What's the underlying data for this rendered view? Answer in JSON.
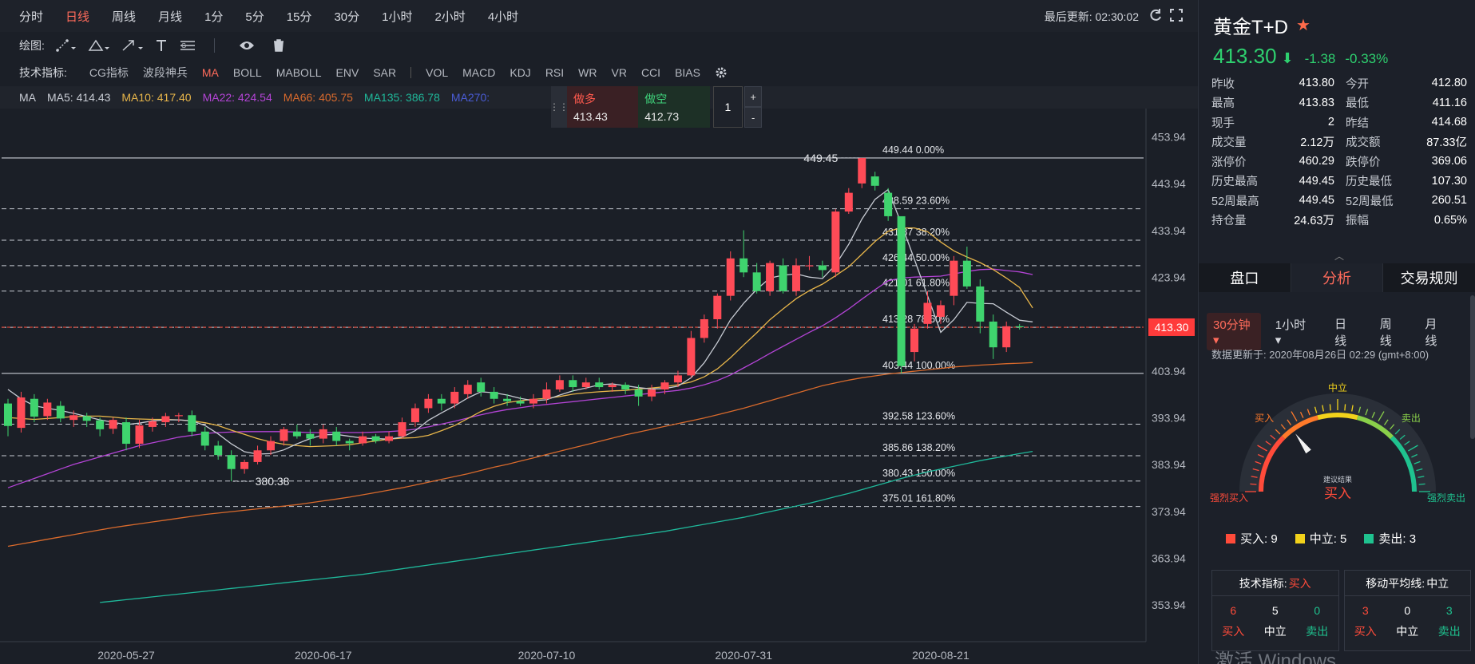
{
  "timeframes": [
    "分时",
    "日线",
    "周线",
    "月线",
    "1分",
    "5分",
    "15分",
    "30分",
    "1小时",
    "2小时",
    "4小时"
  ],
  "active_timeframe": "日线",
  "last_update": "最后更新: 02:30:02",
  "draw": {
    "label": "绘图:"
  },
  "indicators": {
    "label": "技术指标:",
    "items": [
      "CG指标",
      "波段神兵",
      "MA",
      "BOLL",
      "MABOLL",
      "ENV",
      "SAR",
      "|",
      "VOL",
      "MACD",
      "KDJ",
      "RSI",
      "WR",
      "VR",
      "CCI",
      "BIAS"
    ],
    "active": "MA"
  },
  "ma_legend": [
    {
      "text": "MA",
      "color": "#c8ccd4"
    },
    {
      "text": "MA5: 414.43",
      "color": "#c8ccd4"
    },
    {
      "text": "MA10: 417.40",
      "color": "#e8b64a"
    },
    {
      "text": "MA22: 424.54",
      "color": "#b444d6"
    },
    {
      "text": "MA66: 405.75",
      "color": "#d96a2c"
    },
    {
      "text": "MA135: 386.78",
      "color": "#1fb89a"
    },
    {
      "text": "MA270:",
      "color": "#4a5cd6"
    }
  ],
  "trade_panel": {
    "buy_label": "做多",
    "buy_price": "413.43",
    "sell_label": "做空",
    "sell_price": "412.73",
    "qty": "1",
    "plus": "+",
    "minus": "-"
  },
  "chart_data": {
    "type": "candlestick",
    "ylim": [
      347.5,
      460.0
    ],
    "y_ticks": [
      453.94,
      443.94,
      433.94,
      423.94,
      413.94,
      403.94,
      393.94,
      383.94,
      373.94,
      363.94,
      353.94
    ],
    "y_tick_labels": [
      "453.94",
      "443.94",
      "433.94",
      "423.94",
      "413.94",
      "403.94",
      "393.94",
      "383.94",
      "373.94",
      "363.94",
      "353.94"
    ],
    "x_labels": [
      {
        "label": "2020-05-27",
        "index": 9
      },
      {
        "label": "2020-06-17",
        "index": 24
      },
      {
        "label": "2020-07-10",
        "index": 41
      },
      {
        "label": "2020-07-31",
        "index": 56
      },
      {
        "label": "2020-08-21",
        "index": 71
      }
    ],
    "current_price": "413.30",
    "current_price_value": 413.3,
    "high_label": "449.45",
    "low_label": "380.38",
    "fib_levels": [
      {
        "value": 449.44,
        "label": "449.44 0.00%",
        "solid": true
      },
      {
        "value": 438.59,
        "label": "438.59 23.60%",
        "solid": false
      },
      {
        "value": 431.87,
        "label": "431.87 38.20%",
        "solid": false
      },
      {
        "value": 426.44,
        "label": "426.44 50.00%",
        "solid": false
      },
      {
        "value": 421.01,
        "label": "421.01 61.80%",
        "solid": false
      },
      {
        "value": 413.28,
        "label": "413.28 78.60%",
        "solid": false
      },
      {
        "value": 403.44,
        "label": "403.44 100.00%",
        "solid": true
      },
      {
        "value": 392.58,
        "label": "392.58 123.60%",
        "solid": false
      },
      {
        "value": 385.86,
        "label": "385.86 138.20%",
        "solid": false
      },
      {
        "value": 380.43,
        "label": "380.43 150.00%",
        "solid": false
      },
      {
        "value": 375.01,
        "label": "375.01 161.80%",
        "solid": false
      }
    ],
    "candles": [
      [
        397.0,
        392.2,
        398.0,
        390.0
      ],
      [
        391.8,
        398.3,
        399.5,
        390.8
      ],
      [
        398.0,
        394.2,
        399.0,
        393.0
      ],
      [
        394.3,
        397.2,
        398.0,
        393.5
      ],
      [
        396.5,
        393.8,
        397.5,
        393.0
      ],
      [
        393.5,
        394.5,
        395.5,
        392.0
      ],
      [
        394.3,
        393.3,
        395.0,
        392.0
      ],
      [
        393.4,
        391.5,
        394.0,
        390.0
      ],
      [
        391.6,
        393.5,
        394.0,
        390.5
      ],
      [
        393.0,
        388.4,
        394.0,
        387.0
      ],
      [
        388.4,
        392.3,
        393.5,
        387.5
      ],
      [
        392.0,
        393.2,
        394.0,
        391.0
      ],
      [
        393.0,
        394.3,
        395.0,
        392.0
      ],
      [
        394.3,
        394.5,
        395.0,
        393.0
      ],
      [
        394.5,
        391.0,
        395.5,
        390.0
      ],
      [
        391.0,
        388.0,
        392.0,
        387.0
      ],
      [
        388.0,
        386.0,
        389.0,
        385.0
      ],
      [
        386.0,
        383.0,
        387.0,
        380.38
      ],
      [
        383.0,
        384.5,
        385.0,
        382.0
      ],
      [
        384.5,
        387.0,
        388.0,
        384.0
      ],
      [
        387.0,
        389.0,
        390.0,
        386.0
      ],
      [
        389.0,
        391.5,
        392.0,
        388.0
      ],
      [
        391.0,
        390.0,
        392.5,
        389.5
      ],
      [
        390.5,
        389.5,
        391.5,
        388.0
      ],
      [
        389.5,
        391.5,
        392.5,
        388.5
      ],
      [
        391.0,
        389.0,
        392.0,
        388.0
      ],
      [
        389.0,
        388.5,
        389.5,
        387.0
      ],
      [
        388.5,
        390.0,
        391.0,
        388.0
      ],
      [
        390.0,
        389.0,
        390.5,
        388.5
      ],
      [
        389.0,
        390.0,
        391.0,
        388.5
      ],
      [
        390.0,
        393.0,
        394.0,
        389.5
      ],
      [
        393.0,
        396.0,
        397.0,
        392.0
      ],
      [
        396.0,
        398.0,
        399.0,
        395.0
      ],
      [
        398.0,
        397.0,
        399.0,
        395.5
      ],
      [
        397.0,
        399.5,
        400.5,
        396.0
      ],
      [
        399.0,
        401.0,
        402.0,
        398.0
      ],
      [
        401.5,
        399.5,
        402.5,
        398.5
      ],
      [
        399.5,
        398.0,
        400.5,
        397.0
      ],
      [
        398.0,
        397.5,
        399.0,
        396.5
      ],
      [
        397.5,
        397.0,
        398.5,
        396.5
      ],
      [
        397.0,
        398.0,
        399.0,
        396.0
      ],
      [
        398.0,
        400.0,
        401.5,
        397.0
      ],
      [
        400.0,
        402.0,
        403.0,
        399.5
      ],
      [
        402.0,
        400.5,
        403.0,
        399.5
      ],
      [
        400.5,
        401.5,
        402.5,
        400.0
      ],
      [
        401.5,
        400.5,
        402.5,
        400.0
      ],
      [
        400.5,
        401.0,
        401.5,
        399.5
      ],
      [
        401.0,
        400.0,
        401.5,
        399.0
      ],
      [
        400.0,
        398.5,
        401.0,
        396.5
      ],
      [
        398.5,
        400.0,
        401.0,
        397.5
      ],
      [
        400.0,
        401.5,
        402.0,
        399.0
      ],
      [
        401.5,
        403.0,
        404.0,
        400.5
      ],
      [
        403.0,
        411.0,
        412.5,
        402.5
      ],
      [
        411.0,
        415.0,
        416.0,
        410.0
      ],
      [
        415.0,
        420.0,
        420.5,
        413.0
      ],
      [
        420.0,
        428.0,
        429.5,
        419.0
      ],
      [
        428.0,
        425.0,
        434.0,
        424.0
      ],
      [
        425.0,
        421.0,
        427.0,
        420.5
      ],
      [
        421.0,
        427.0,
        427.5,
        420.0
      ],
      [
        426.5,
        421.0,
        428.0,
        420.5
      ],
      [
        421.0,
        426.5,
        428.0,
        420.0
      ],
      [
        426.5,
        426.5,
        428.5,
        425.5
      ],
      [
        426.5,
        425.5,
        427.5,
        424.0
      ],
      [
        425.0,
        438.0,
        438.5,
        424.0
      ],
      [
        438.0,
        442.0,
        443.0,
        437.5
      ],
      [
        444.0,
        449.45,
        449.45,
        443.0
      ],
      [
        445.5,
        443.5,
        446.5,
        442.5
      ],
      [
        442.0,
        437.0,
        443.0,
        436.0
      ],
      [
        437.0,
        405.0,
        427.5,
        403.44
      ],
      [
        408.0,
        413.0,
        414.0,
        406.0
      ],
      [
        414.0,
        418.5,
        421.0,
        413.0
      ],
      [
        415.5,
        418.0,
        419.0,
        414.0
      ],
      [
        420.0,
        427.5,
        428.5,
        418.0
      ],
      [
        427.5,
        422.0,
        430.5,
        421.5
      ],
      [
        422.0,
        414.5,
        423.5,
        412.0
      ],
      [
        414.5,
        409.0,
        416.0,
        406.5
      ],
      [
        409.0,
        413.5,
        414.5,
        408.0
      ],
      [
        413.5,
        413.3,
        414.0,
        412.8
      ]
    ],
    "ma5": [
      400,
      398,
      396.5,
      396,
      395.5,
      394.9,
      394.2,
      393.5,
      393,
      392.5,
      392.8,
      393.3,
      393.5,
      393.5,
      393.3,
      392.3,
      390.5,
      388.4,
      386.7,
      386.2,
      386.3,
      387.1,
      388.4,
      389.5,
      390.3,
      390.4,
      390.0,
      389.6,
      389.5,
      389.4,
      389.8,
      391.2,
      393.4,
      395,
      396.5,
      398.2,
      399.5,
      399.3,
      398.8,
      398.1,
      397.6,
      397.8,
      398.8,
      399.7,
      400.3,
      401,
      401.2,
      400.8,
      400.4,
      400.1,
      400.2,
      400.7,
      402.5,
      405.7,
      410,
      414.9,
      418.4,
      421.4,
      423.8,
      424.4,
      424.7,
      424,
      423.7,
      426.6,
      431,
      436.4,
      440.6,
      442.7,
      435.4,
      427.8,
      420,
      412.2,
      414.9,
      418.6,
      418.4,
      418.3,
      416.5,
      414.8,
      414.43
    ],
    "ma10": [
      394,
      393.8,
      393.6,
      393.8,
      394,
      394.2,
      394.3,
      394.3,
      394.1,
      393.8,
      393.7,
      393.6,
      393.6,
      393.5,
      393.3,
      392.9,
      392.3,
      391.3,
      390.4,
      389.5,
      388.8,
      388.3,
      388,
      387.8,
      387.9,
      388,
      388.2,
      388.6,
      389,
      389.4,
      389.6,
      389.7,
      390.2,
      391.2,
      392.3,
      393.8,
      395.3,
      396.4,
      397.2,
      397.6,
      397.9,
      398.1,
      398.5,
      399,
      399.3,
      399.5,
      399.7,
      399.8,
      400.1,
      400.3,
      400.6,
      401,
      401.6,
      402.7,
      404.4,
      406.8,
      409.5,
      412.1,
      414.9,
      417.2,
      419.4,
      421.1,
      422.5,
      424.3,
      426.2,
      428.9,
      431.6,
      433.8,
      434.5,
      434.5,
      433.7,
      431.5,
      429.6,
      428.3,
      427.1,
      425.6,
      423.8,
      421.8,
      417.4
    ],
    "ma22": [
      379,
      380,
      381,
      382,
      383,
      384,
      384.8,
      385.6,
      386.4,
      387.2,
      388,
      388.6,
      389.2,
      389.8,
      390.2,
      390.6,
      390.8,
      390.9,
      391,
      391,
      391,
      391,
      390.9,
      390.8,
      390.8,
      390.8,
      390.8,
      390.8,
      390.9,
      391,
      391.2,
      391.5,
      392,
      392.6,
      393.2,
      393.9,
      394.6,
      395.2,
      395.7,
      396.1,
      396.5,
      396.8,
      397.1,
      397.4,
      397.7,
      398,
      398.3,
      398.6,
      398.9,
      399.2,
      399.5,
      399.8,
      400.3,
      401,
      401.9,
      403.1,
      404.6,
      406.1,
      407.7,
      409.2,
      410.7,
      412.2,
      413.6,
      415.3,
      417.2,
      419.3,
      421.3,
      423.2,
      423.8,
      424,
      424.1,
      424.2,
      424.7,
      425.2,
      425.6,
      425.7,
      425.4,
      425.1,
      424.54
    ],
    "ma66": [
      366.5,
      367,
      367.5,
      368,
      368.5,
      369,
      369.5,
      370,
      370.5,
      370.9,
      371.3,
      371.7,
      372.1,
      372.5,
      372.9,
      373.3,
      373.6,
      373.9,
      374.2,
      374.5,
      374.8,
      375.1,
      375.4,
      375.8,
      376.2,
      376.6,
      377,
      377.5,
      378,
      378.5,
      379,
      379.6,
      380.2,
      380.8,
      381.4,
      382,
      382.7,
      383.4,
      384,
      384.7,
      385.4,
      386.1,
      386.8,
      387.5,
      388.2,
      388.9,
      389.6,
      390.3,
      390.9,
      391.5,
      392.1,
      392.7,
      393.3,
      393.9,
      394.6,
      395.3,
      396,
      396.8,
      397.6,
      398.4,
      399.2,
      400,
      400.8,
      401.4,
      402,
      402.5,
      402.9,
      403.3,
      403.6,
      403.9,
      404.2,
      404.5,
      404.8,
      405,
      405.2,
      405.35,
      405.5,
      405.6,
      405.75
    ],
    "ma135": [
      null,
      null,
      null,
      null,
      null,
      null,
      null,
      354.5,
      354.8,
      355.1,
      355.4,
      355.7,
      356,
      356.3,
      356.6,
      356.9,
      357.2,
      357.5,
      357.8,
      358.1,
      358.4,
      358.7,
      359,
      359.3,
      359.6,
      359.9,
      360.2,
      360.5,
      360.9,
      361.3,
      361.7,
      362.1,
      362.5,
      362.9,
      363.3,
      363.7,
      364.1,
      364.5,
      364.9,
      365.3,
      365.7,
      366.1,
      366.5,
      366.9,
      367.3,
      367.7,
      368.1,
      368.5,
      368.9,
      369.3,
      369.7,
      370.2,
      370.7,
      371.2,
      371.7,
      372.2,
      372.7,
      373.3,
      373.9,
      374.5,
      375.1,
      375.7,
      376.4,
      377.1,
      377.8,
      378.6,
      379.4,
      380.2,
      381,
      381.7,
      382.4,
      383,
      383.6,
      384.2,
      384.8,
      385.3,
      385.8,
      386.3,
      386.78
    ]
  },
  "panel": {
    "symbol": "黄金T+D",
    "star": "★",
    "price": "413.30",
    "change": "-1.38",
    "change_pct": "-0.33%",
    "quote": [
      [
        "昨收",
        "413.80",
        "今开",
        "412.80"
      ],
      [
        "最高",
        "413.83",
        "最低",
        "411.16"
      ],
      [
        "现手",
        "2",
        "昨结",
        "414.68"
      ],
      [
        "成交量",
        "2.12万",
        "成交额",
        "87.33亿"
      ],
      [
        "涨停价",
        "460.29",
        "跌停价",
        "369.06"
      ],
      [
        "历史最高",
        "449.45",
        "历史最低",
        "107.30"
      ],
      [
        "52周最高",
        "449.45",
        "52周最低",
        "260.51"
      ],
      [
        "持仓量",
        "24.63万",
        "振幅",
        "0.65%"
      ]
    ],
    "tabs": [
      "盘口",
      "分析",
      "交易规则"
    ],
    "active_tab": "分析",
    "periods": [
      "30分钟",
      "1小时",
      "日线",
      "周线",
      "月线"
    ],
    "active_period": "30分钟",
    "updated": "数据更新于: 2020年08月26日 02:29 (gmt+8:00)",
    "gauge": {
      "strong_buy": "强烈买入",
      "buy": "买入",
      "neutral": "中立",
      "sell": "卖出",
      "strong_sell": "强烈卖出",
      "caption": "建议结果",
      "result": "买入",
      "needle_value": 0.3
    },
    "counts": [
      {
        "label": "买入: 9",
        "color": "#ff4b3a"
      },
      {
        "label": "中立: 5",
        "color": "#f2d21b"
      },
      {
        "label": "卖出: 3",
        "color": "#1fc28f"
      }
    ],
    "tech": {
      "title": "技术指标:",
      "result": "买入",
      "nums": [
        "6",
        "5",
        "0"
      ],
      "labels": [
        "买入",
        "中立",
        "卖出"
      ]
    },
    "ma": {
      "title": "移动平均线:",
      "result": "中立",
      "nums": [
        "3",
        "0",
        "3"
      ],
      "labels": [
        "买入",
        "中立",
        "卖出"
      ]
    },
    "watermark": "激活 Windows"
  }
}
